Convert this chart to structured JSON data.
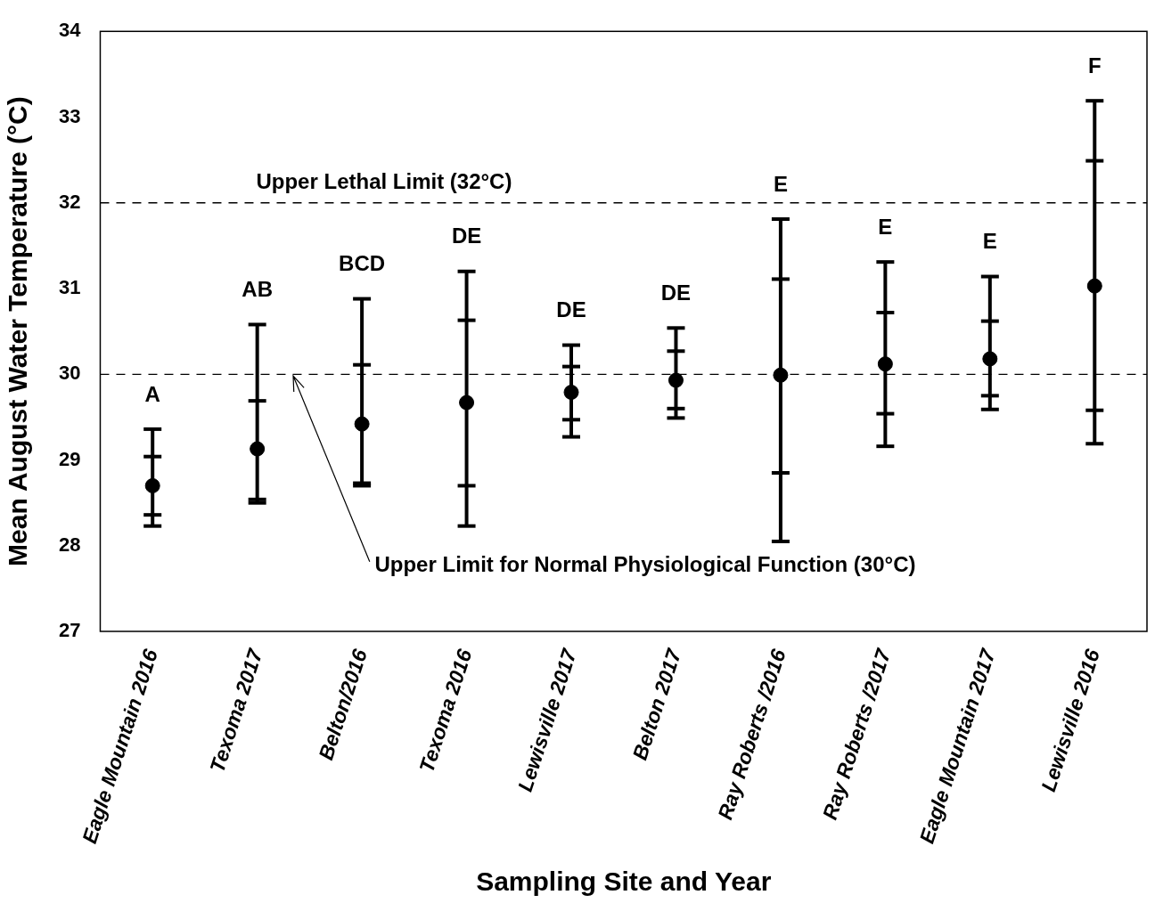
{
  "chart_data": {
    "type": "box",
    "xlabel": "Sampling Site and Year",
    "ylabel": "Mean August Water Temperature (°C)",
    "categories": [
      "Eagle Mountain 2016",
      "Texoma 2017",
      "Belton/2016",
      "Texoma 2016",
      "Lewisville 2017",
      "Belton 2017",
      "Ray Roberts /2016",
      "Ray Roberts /2017",
      "Eagle Mountain 2017",
      "Lewisville 2016"
    ],
    "boxes": [
      {
        "low": 28.23,
        "q1": 28.36,
        "median": 28.7,
        "q3": 29.04,
        "high": 29.36
      },
      {
        "low": 28.5,
        "q1": 28.54,
        "median": 29.13,
        "q3": 29.69,
        "high": 30.58
      },
      {
        "low": 28.7,
        "q1": 28.73,
        "median": 29.42,
        "q3": 30.11,
        "high": 30.88
      },
      {
        "low": 28.23,
        "q1": 28.7,
        "median": 29.67,
        "q3": 30.63,
        "high": 31.2
      },
      {
        "low": 29.27,
        "q1": 29.47,
        "median": 29.79,
        "q3": 30.09,
        "high": 30.34
      },
      {
        "low": 29.49,
        "q1": 29.6,
        "median": 29.93,
        "q3": 30.27,
        "high": 30.54
      },
      {
        "low": 28.05,
        "q1": 28.85,
        "median": 29.99,
        "q3": 31.11,
        "high": 31.81
      },
      {
        "low": 29.16,
        "q1": 29.54,
        "median": 30.12,
        "q3": 30.72,
        "high": 31.31
      },
      {
        "low": 29.59,
        "q1": 29.75,
        "median": 30.18,
        "q3": 30.62,
        "high": 31.14
      },
      {
        "low": 29.19,
        "q1": 29.58,
        "median": 31.03,
        "q3": 32.49,
        "high": 33.19
      }
    ],
    "color": "#000000",
    "marker": "circle",
    "ylim": [
      27,
      34
    ],
    "yticks": [
      27,
      28,
      29,
      30,
      31,
      32,
      33,
      34
    ],
    "grid": false,
    "legend": false,
    "ref_lines": [
      {
        "axis": "y",
        "value": 32,
        "label": "Upper Lethal Limit (32°C)",
        "line_style": "dashed"
      },
      {
        "axis": "y",
        "value": 30,
        "label": "Upper Limit for Normal Physiological Function (30°C)",
        "line_style": "dashed"
      }
    ],
    "annotations": [
      "A",
      "AB",
      "BCD",
      "DE",
      "DE",
      "DE",
      "E",
      "E",
      "E",
      "F"
    ]
  }
}
